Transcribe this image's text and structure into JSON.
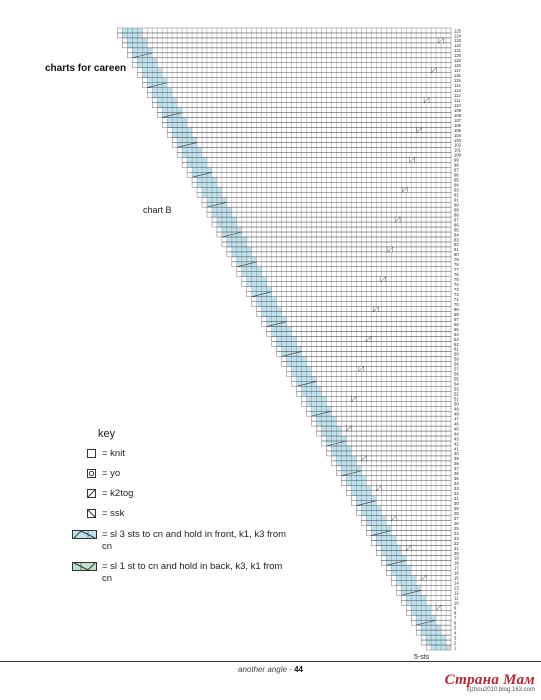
{
  "page": {
    "title": "charts for careen",
    "chart_name": "chart B",
    "sts_label": "5-sts",
    "footer_text": "another angle",
    "footer_separator": " - ",
    "page_number": "44"
  },
  "watermark": {
    "main": "Страна Мам",
    "sub": "tijzhou2010.blog.163.com"
  },
  "key": {
    "title": "key",
    "items": [
      {
        "symbol": "knit-box",
        "text": "= knit"
      },
      {
        "symbol": "yo-box",
        "text": "= yo"
      },
      {
        "symbol": "k2tog-box",
        "text": "= k2tog"
      },
      {
        "symbol": "ssk-box",
        "text": "= ssk"
      },
      {
        "symbol": "cable-front",
        "text": "= sl 3 sts to cn and hold in front, k1, k3 from cn"
      },
      {
        "symbol": "cable-back",
        "text": "= sl 1 st to cn and hold in back, k3, k1 from cn"
      }
    ]
  },
  "chart": {
    "rows": 125,
    "colors": {
      "cable_front": "#bfe3ee",
      "cable_back": "#bfe3c8",
      "grid": "#444444"
    }
  }
}
